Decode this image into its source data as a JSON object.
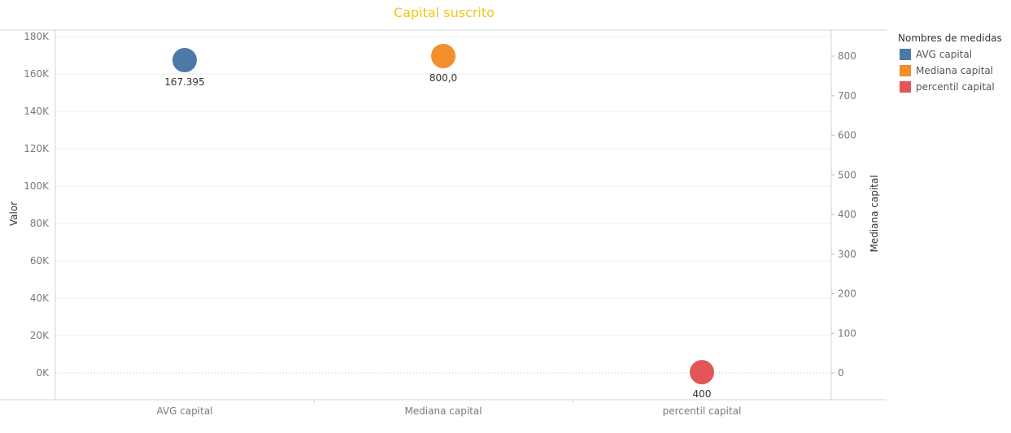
{
  "chart_data": {
    "type": "scatter",
    "title": "Capital suscrito",
    "categories": [
      "AVG capital",
      "Mediana capital",
      "percentil capital"
    ],
    "y_left": {
      "label": "Valor",
      "ticks": [
        0,
        20000,
        40000,
        60000,
        80000,
        100000,
        120000,
        140000,
        160000,
        180000
      ],
      "tick_labels": [
        "0K",
        "20K",
        "40K",
        "60K",
        "80K",
        "100K",
        "120K",
        "140K",
        "160K",
        "180K"
      ],
      "ylim": [
        0,
        180000
      ]
    },
    "y_right": {
      "label": "Mediana capital",
      "ticks": [
        0,
        100,
        200,
        300,
        400,
        500,
        600,
        700,
        800
      ],
      "tick_labels": [
        "0",
        "100",
        "200",
        "300",
        "400",
        "500",
        "600",
        "700",
        "800"
      ],
      "ylim": [
        0,
        800
      ]
    },
    "series": [
      {
        "name": "AVG capital",
        "category": "AVG capital",
        "axis": "left",
        "value": 167395,
        "label": "167.395",
        "color": "#4e79a7"
      },
      {
        "name": "Mediana capital",
        "category": "Mediana capital",
        "axis": "right",
        "value": 800,
        "label": "800,0",
        "color": "#f28e2b"
      },
      {
        "name": "percentil capital",
        "category": "percentil capital",
        "axis": "left",
        "value": 400,
        "label": "400",
        "color": "#e15759"
      }
    ],
    "legend": {
      "title": "Nombres de medidas",
      "position": "right",
      "items": [
        {
          "label": "AVG capital",
          "color": "#4e79a7"
        },
        {
          "label": "Mediana capital",
          "color": "#f28e2b"
        },
        {
          "label": "percentil capital",
          "color": "#e15759"
        }
      ]
    },
    "grid": true
  }
}
